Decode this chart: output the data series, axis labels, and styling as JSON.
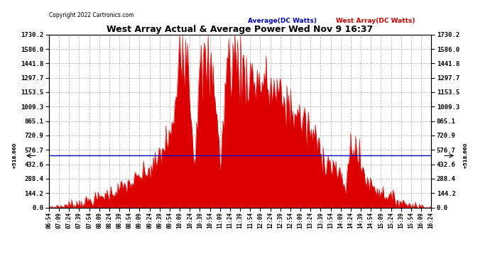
{
  "title": "West Array Actual & Average Power Wed Nov 9 16:37",
  "copyright": "Copyright 2022 Cartronics.com",
  "legend_avg": "Average(DC Watts)",
  "legend_west": "West Array(DC Watts)",
  "avg_value": 518.66,
  "avg_label": "+518.660",
  "ymin": 0.0,
  "ymax": 1730.2,
  "yticks": [
    0.0,
    144.2,
    288.4,
    432.6,
    576.7,
    720.9,
    865.1,
    1009.3,
    1153.5,
    1297.7,
    1441.8,
    1586.0,
    1730.2
  ],
  "background_color": "#ffffff",
  "fill_color": "#dd0000",
  "line_color": "#cc0000",
  "avg_line_color": "#0000cc",
  "grid_color": "#aaaaaa",
  "title_color": "#000000",
  "copyright_color": "#000000",
  "legend_avg_color": "#0000bb",
  "legend_west_color": "#cc0000",
  "tick_labels": [
    "06:54",
    "07:09",
    "07:24",
    "07:39",
    "07:54",
    "08:09",
    "08:24",
    "08:39",
    "08:54",
    "09:09",
    "09:24",
    "09:39",
    "09:54",
    "10:09",
    "10:24",
    "10:39",
    "10:54",
    "11:09",
    "11:24",
    "11:39",
    "11:54",
    "12:09",
    "12:24",
    "12:39",
    "12:54",
    "13:09",
    "13:24",
    "13:39",
    "13:54",
    "14:09",
    "14:24",
    "14:39",
    "14:54",
    "15:09",
    "15:24",
    "15:39",
    "15:54",
    "16:09",
    "16:24"
  ]
}
